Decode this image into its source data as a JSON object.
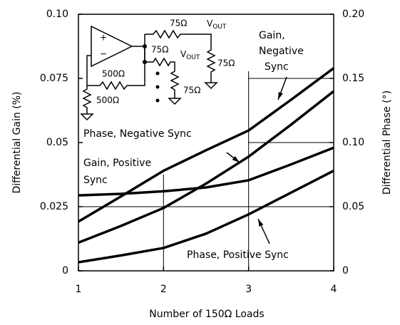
{
  "chart_data": {
    "type": "line",
    "x_label": "Number of 150Ω Loads",
    "y_label": "Differential Gain (%)",
    "y2_label": "Differential Phase (°)",
    "xlim": [
      1,
      4
    ],
    "xticks": [
      1,
      2,
      3,
      4
    ],
    "ylim": [
      0,
      0.1
    ],
    "yticks": [
      0,
      0.025,
      0.05,
      0.075,
      {
        "value": 0.1,
        "label": "0.10"
      }
    ],
    "y2lim": [
      0,
      0.2
    ],
    "y2ticks": [
      0,
      0.05,
      {
        "value": 0.1,
        "label": "0.10"
      },
      0.15,
      {
        "value": 0.2,
        "label": "0.20"
      }
    ],
    "grid": true,
    "x": [
      1,
      1.5,
      2,
      2.5,
      3,
      3.5,
      4
    ],
    "series": [
      {
        "name": "Gain, Negative Sync",
        "color": "#000000",
        "values": [
          0.0192,
          0.029,
          0.039,
          0.047,
          0.0547,
          0.0667,
          0.079
        ]
      },
      {
        "name": "Phase, Negative Sync",
        "color": "#000000",
        "axis": "y2",
        "values": [
          0.022,
          0.035,
          0.049,
          0.068,
          0.089,
          0.114,
          0.14
        ]
      },
      {
        "name": "Gain, Positive Sync",
        "color": "#000000",
        "values": [
          0.0294,
          0.03,
          0.031,
          0.0325,
          0.0353,
          0.0415,
          0.048
        ]
      },
      {
        "name": "Phase, Positive Sync",
        "color": "#000000",
        "axis": "y2",
        "values": [
          0.0067,
          0.012,
          0.0178,
          0.029,
          0.044,
          0.061,
          0.078
        ]
      }
    ],
    "annotations": [
      [
        "Gain,",
        "Negative",
        "Sync"
      ],
      [
        "Phase, Negative Sync"
      ],
      [
        "Gain, Positive",
        "Sync"
      ],
      [
        "Phase, Positive Sync"
      ]
    ]
  },
  "circuit": {
    "opamp_plus": "+",
    "opamp_minus": "−",
    "r_out1": "75Ω",
    "r_out2": "75Ω",
    "r_load1": "75Ω",
    "r_load2": "75Ω",
    "r_f": "500Ω",
    "r_g": "500Ω",
    "vout": {
      "main": "V",
      "sub": "OUT"
    }
  }
}
